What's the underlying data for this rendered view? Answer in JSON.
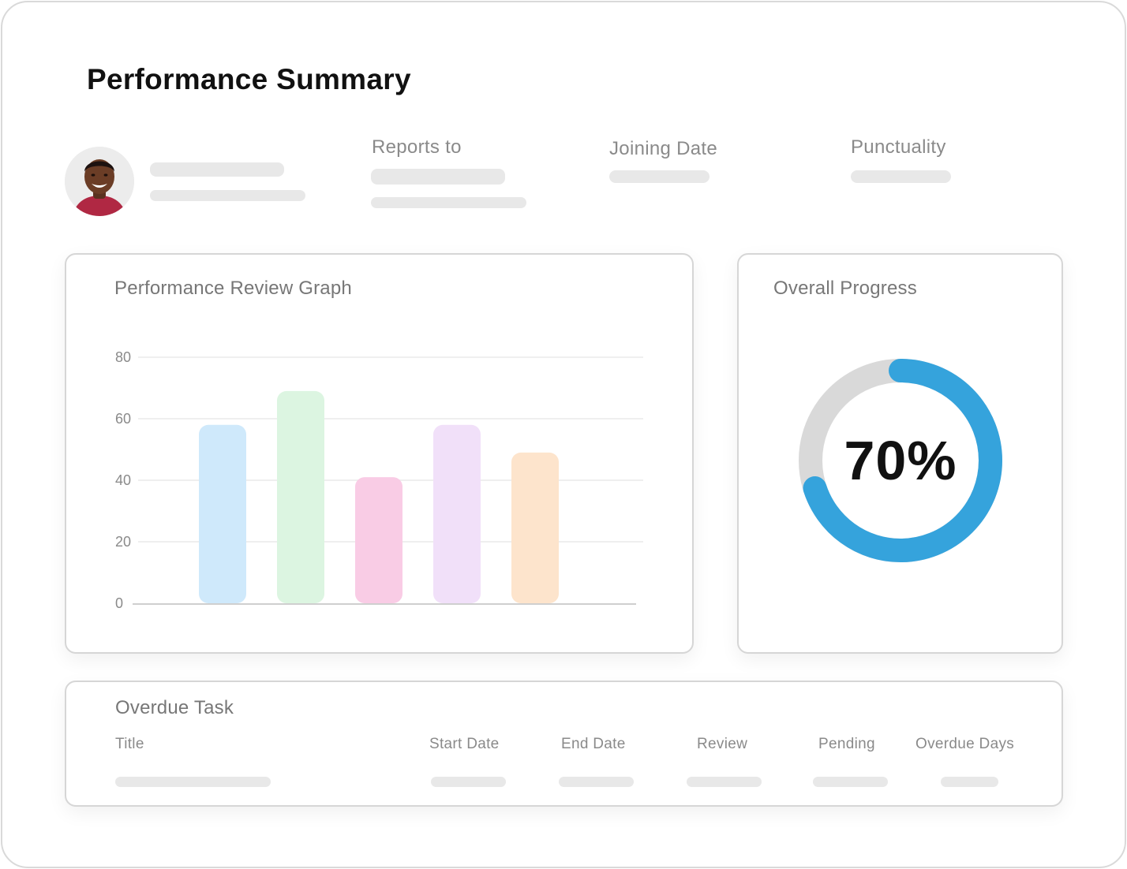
{
  "header": {
    "title": "Performance Summary"
  },
  "profile": {
    "reports_to_label": "Reports to",
    "joining_date_label": "Joining Date",
    "punctuality_label": "Punctuality"
  },
  "performance_graph": {
    "title": "Performance Review Graph"
  },
  "chart_data": {
    "type": "bar",
    "categories": [
      "",
      "",
      "",
      "",
      ""
    ],
    "values": [
      58,
      69,
      41,
      58,
      49
    ],
    "ylim": [
      0,
      80
    ],
    "yticks": [
      "0",
      "20",
      "40",
      "60",
      "80"
    ],
    "grid": true,
    "colors": [
      "#cfe9fb",
      "#dcf5e1",
      "#f9cce5",
      "#f1e0f9",
      "#fde4cc"
    ]
  },
  "overall_progress": {
    "title": "Overall Progress",
    "value": 0.7,
    "label": "70%",
    "track_color": "#d9d9d9",
    "fill_color": "#35a3dc"
  },
  "overdue_tasks": {
    "title": "Overdue Task",
    "columns": [
      "Title",
      "Start Date",
      "End Date",
      "Review",
      "Pending",
      "Overdue Days"
    ]
  }
}
